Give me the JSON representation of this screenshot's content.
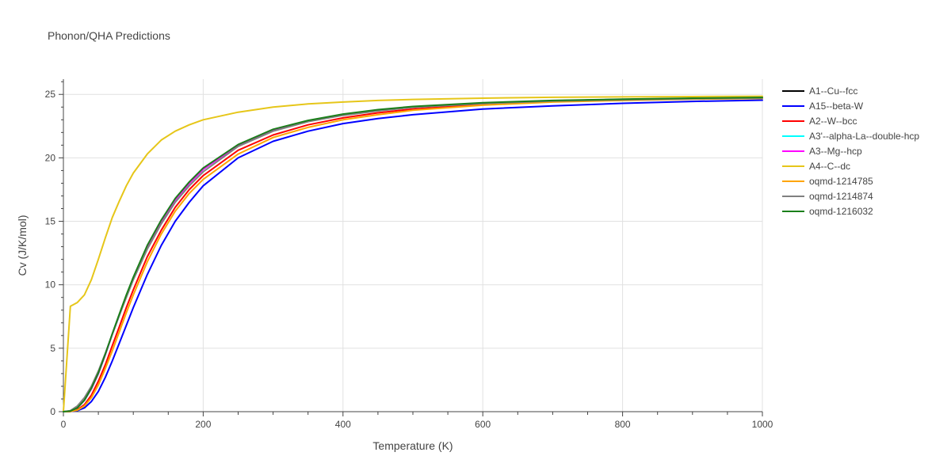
{
  "chart_data": {
    "type": "line",
    "title": "Phonon/QHA Predictions",
    "xlabel": "Temperature (K)",
    "ylabel": "Cv (J/K/mol)",
    "xlim": [
      0,
      1000
    ],
    "ylim": [
      0,
      26.2
    ],
    "xticks": [
      0,
      200,
      400,
      600,
      800,
      1000
    ],
    "yticks": [
      0,
      5,
      10,
      15,
      20,
      25
    ],
    "grid": true,
    "legend_position": "right",
    "x": [
      0,
      10,
      20,
      30,
      40,
      50,
      60,
      70,
      80,
      90,
      100,
      120,
      140,
      160,
      180,
      200,
      250,
      300,
      350,
      400,
      450,
      500,
      600,
      700,
      800,
      900,
      1000
    ],
    "series": [
      {
        "name": "A1--Cu--fcc",
        "color": "#000000",
        "values": [
          0,
          0.05,
          0.3,
          0.9,
          1.8,
          3.0,
          4.5,
          6.1,
          7.6,
          9.1,
          10.5,
          13.0,
          15.0,
          16.7,
          18.0,
          19.1,
          21.0,
          22.2,
          22.9,
          23.4,
          23.75,
          24.0,
          24.3,
          24.5,
          24.6,
          24.68,
          24.73
        ]
      },
      {
        "name": "A15--beta-W",
        "color": "#0000ff",
        "values": [
          0,
          0.01,
          0.08,
          0.3,
          0.8,
          1.6,
          2.7,
          4.0,
          5.4,
          6.8,
          8.2,
          10.8,
          13.1,
          15.0,
          16.5,
          17.8,
          20.0,
          21.3,
          22.1,
          22.7,
          23.1,
          23.4,
          23.85,
          24.1,
          24.3,
          24.45,
          24.55
        ]
      },
      {
        "name": "A2--W--bcc",
        "color": "#ff0000",
        "values": [
          0,
          0.02,
          0.15,
          0.55,
          1.3,
          2.4,
          3.7,
          5.2,
          6.7,
          8.2,
          9.6,
          12.2,
          14.3,
          16.1,
          17.5,
          18.6,
          20.6,
          21.8,
          22.6,
          23.15,
          23.55,
          23.85,
          24.2,
          24.45,
          24.55,
          24.65,
          24.7
        ]
      },
      {
        "name": "A3'--alpha-La--double-hcp",
        "color": "#00ffff",
        "values": [
          0,
          0.05,
          0.3,
          0.9,
          1.8,
          3.0,
          4.5,
          6.1,
          7.6,
          9.1,
          10.5,
          13.0,
          15.0,
          16.7,
          18.0,
          19.1,
          21.0,
          22.2,
          22.9,
          23.4,
          23.75,
          24.0,
          24.3,
          24.5,
          24.6,
          24.68,
          24.73
        ]
      },
      {
        "name": "A3--Mg--hcp",
        "color": "#ff00ff",
        "values": [
          0,
          0.05,
          0.3,
          0.9,
          1.8,
          3.0,
          4.5,
          6.1,
          7.6,
          9.1,
          10.5,
          13.0,
          15.0,
          16.7,
          18.0,
          19.1,
          21.0,
          22.2,
          22.9,
          23.4,
          23.75,
          24.0,
          24.3,
          24.5,
          24.6,
          24.68,
          24.73
        ]
      },
      {
        "name": "A4--C--dc",
        "color": "#e6c619",
        "values": [
          0,
          8.3,
          8.6,
          9.2,
          10.4,
          12.0,
          13.7,
          15.3,
          16.6,
          17.8,
          18.8,
          20.3,
          21.4,
          22.1,
          22.6,
          23.0,
          23.6,
          24.0,
          24.25,
          24.4,
          24.52,
          24.6,
          24.7,
          24.77,
          24.8,
          24.83,
          24.85
        ]
      },
      {
        "name": "oqmd-1214785",
        "color": "#ffa500",
        "values": [
          0,
          0.02,
          0.12,
          0.45,
          1.1,
          2.1,
          3.4,
          4.8,
          6.3,
          7.8,
          9.2,
          11.8,
          14.0,
          15.8,
          17.2,
          18.3,
          20.3,
          21.6,
          22.4,
          23.0,
          23.4,
          23.75,
          24.15,
          24.4,
          24.52,
          24.62,
          24.68
        ]
      },
      {
        "name": "oqmd-1214874",
        "color": "#808080",
        "values": [
          0,
          0.08,
          0.45,
          1.1,
          2.0,
          3.2,
          4.6,
          6.1,
          7.6,
          9.0,
          10.4,
          12.8,
          14.8,
          16.5,
          17.8,
          18.9,
          20.9,
          22.1,
          22.85,
          23.35,
          23.7,
          23.98,
          24.28,
          24.48,
          24.58,
          24.66,
          24.72
        ]
      },
      {
        "name": "oqmd-1216032",
        "color": "#1a7f1a",
        "values": [
          0,
          0.05,
          0.3,
          0.9,
          1.85,
          3.05,
          4.55,
          6.15,
          7.7,
          9.2,
          10.6,
          13.1,
          15.1,
          16.8,
          18.1,
          19.2,
          21.05,
          22.25,
          22.95,
          23.45,
          23.8,
          24.05,
          24.35,
          24.52,
          24.62,
          24.7,
          24.76
        ]
      }
    ]
  }
}
